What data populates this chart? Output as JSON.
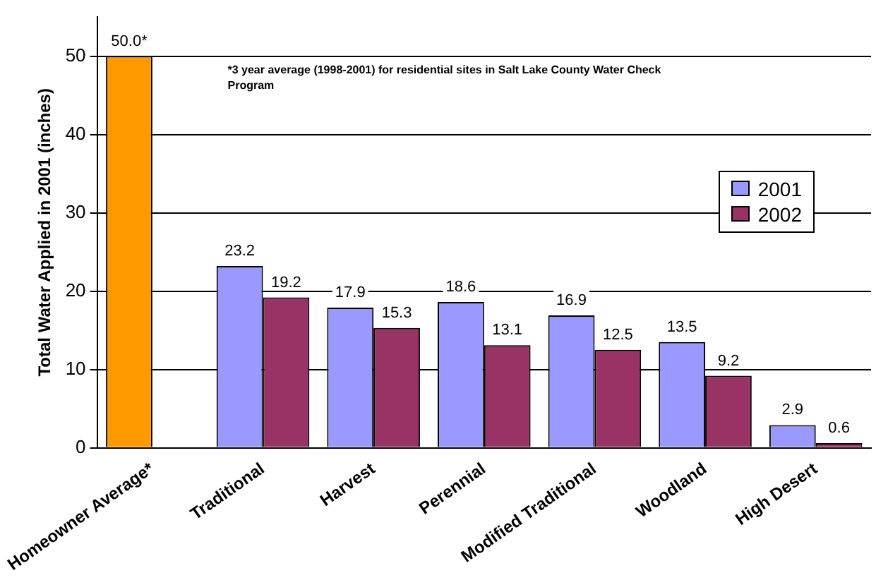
{
  "chart_data": {
    "type": "bar",
    "ylabel": "Total Water Applied in 2001 (inches)",
    "categories": [
      "Homeowner Average*",
      "Traditional",
      "Harvest",
      "Perennial",
      "Modified Traditional",
      "Woodland",
      "High Desert"
    ],
    "series": [
      {
        "name": "2001",
        "color": "#9999ff",
        "colors": [
          "#ff9900",
          "#9999ff",
          "#9999ff",
          "#9999ff",
          "#9999ff",
          "#9999ff",
          "#9999ff"
        ],
        "values": [
          50.0,
          23.2,
          17.9,
          18.6,
          16.9,
          13.5,
          2.9
        ],
        "value_labels": [
          "50.0*",
          "23.2",
          "17.9",
          "18.6",
          "16.9",
          "13.5",
          "2.9"
        ]
      },
      {
        "name": "2002",
        "color": "#993366",
        "values": [
          null,
          19.2,
          15.3,
          13.1,
          12.5,
          9.2,
          0.6
        ],
        "value_labels": [
          null,
          "19.2",
          "15.3",
          "13.1",
          "12.5",
          "9.2",
          "0.6"
        ]
      }
    ],
    "ylim": [
      0,
      55
    ],
    "yticks": [
      0,
      10,
      20,
      30,
      40,
      50
    ],
    "grid": "y",
    "legend": "right",
    "annotations": [
      "*3 year average (1998-2001) for residential sites in Salt Lake County Water Check Program"
    ]
  }
}
